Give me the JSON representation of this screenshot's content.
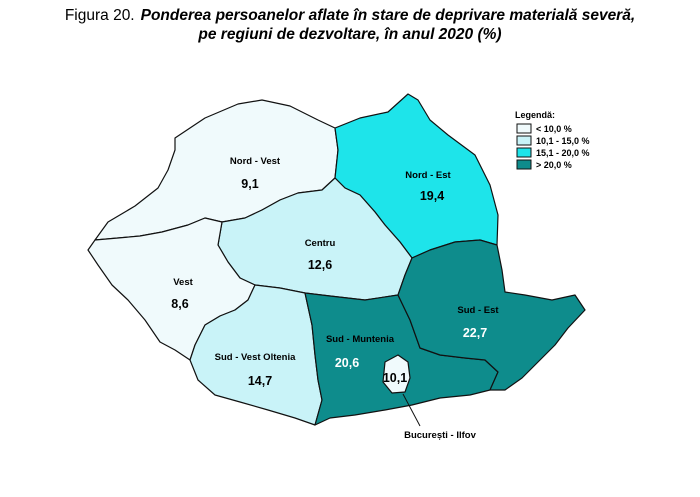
{
  "figure": {
    "label": "Figura 20.",
    "title_line1": "Ponderea persoanelor aflate în stare de deprivare materială severă,",
    "title_line2": "pe regiuni de dezvoltare, în anul 2020 (%)"
  },
  "legend": {
    "title": "Legendă:",
    "items": [
      {
        "label": "< 10,0 %",
        "color": "#f0fafc"
      },
      {
        "label": "10,1 - 15,0 %",
        "color": "#c9f3f8"
      },
      {
        "label": "15,1 - 20,0 %",
        "color": "#1ee4ea"
      },
      {
        "label": "> 20,0 %",
        "color": "#0e8c8c"
      }
    ]
  },
  "regions": [
    {
      "name": "Nord - Vest",
      "value": "9,1"
    },
    {
      "name": "Nord - Est",
      "value": "19,4"
    },
    {
      "name": "Centru",
      "value": "12,6"
    },
    {
      "name": "Vest",
      "value": "8,6"
    },
    {
      "name": "Sud - Vest Oltenia",
      "value": "14,7"
    },
    {
      "name": "Sud - Muntenia",
      "value": "20,6"
    },
    {
      "name": "Sud - Est",
      "value": "22,7"
    },
    {
      "name": "București - Ilfov",
      "value": "10,1"
    }
  ],
  "colors": {
    "outline": "#111111"
  }
}
